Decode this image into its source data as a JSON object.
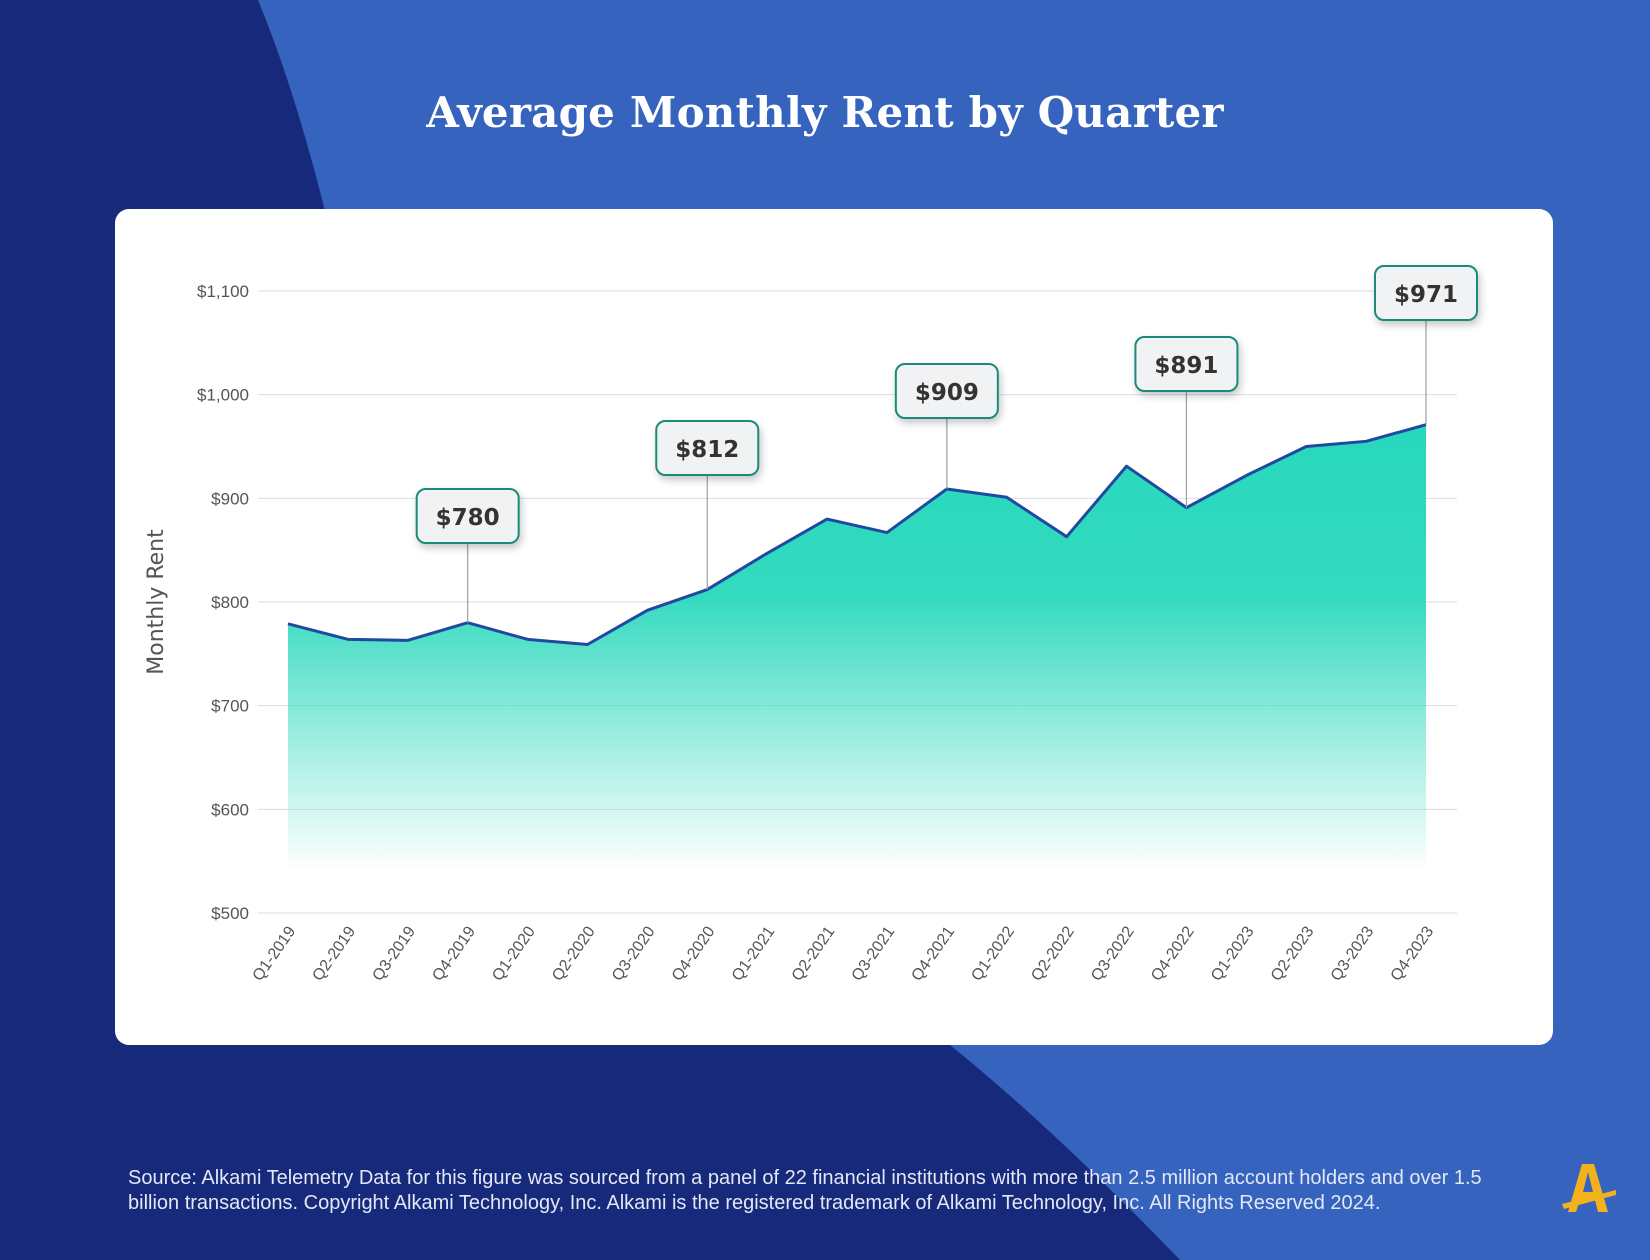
{
  "title": "Average Monthly Rent by Quarter",
  "source": "Source:  Alkami Telemetry Data for this figure was sourced from a panel of 22 financial institutions with more than 2.5 million account holders and over 1.5 billion transactions. Copyright Alkami Technology, Inc. Alkami is the registered trademark of Alkami Technology, Inc. All Rights Reserved 2024.",
  "logo_icon": "alkami-logo-icon",
  "colors": {
    "background_dark": "#16297a",
    "background_light": "#3563bd",
    "line": "#1f4aa0",
    "area_top": "#28d8bc",
    "callout_border": "#1f8a7a",
    "logo": "#f3b21b"
  },
  "chart_data": {
    "type": "area",
    "ylabel": "Monthly Rent",
    "xlabel": "",
    "ylim": [
      500,
      1100
    ],
    "yticks": [
      500,
      600,
      700,
      800,
      900,
      1000,
      1100
    ],
    "ytick_labels": [
      "$500",
      "$600",
      "$700",
      "$800",
      "$900",
      "$1,000",
      "$1,100"
    ],
    "grid": true,
    "categories": [
      "Q1-2019",
      "Q2-2019",
      "Q3-2019",
      "Q4-2019",
      "Q1-2020",
      "Q2-2020",
      "Q3-2020",
      "Q4-2020",
      "Q1-2021",
      "Q2-2021",
      "Q3-2021",
      "Q4-2021",
      "Q1-2022",
      "Q2-2022",
      "Q3-2022",
      "Q4-2022",
      "Q1-2023",
      "Q2-2023",
      "Q3-2023",
      "Q4-2023"
    ],
    "values": [
      779,
      764,
      763,
      780,
      764,
      759,
      792,
      812,
      847,
      880,
      867,
      909,
      901,
      863,
      931,
      891,
      922,
      950,
      955,
      971
    ],
    "callouts": [
      {
        "index": 3,
        "label": "$780"
      },
      {
        "index": 7,
        "label": "$812"
      },
      {
        "index": 11,
        "label": "$909"
      },
      {
        "index": 15,
        "label": "$891"
      },
      {
        "index": 19,
        "label": "$971"
      }
    ]
  }
}
